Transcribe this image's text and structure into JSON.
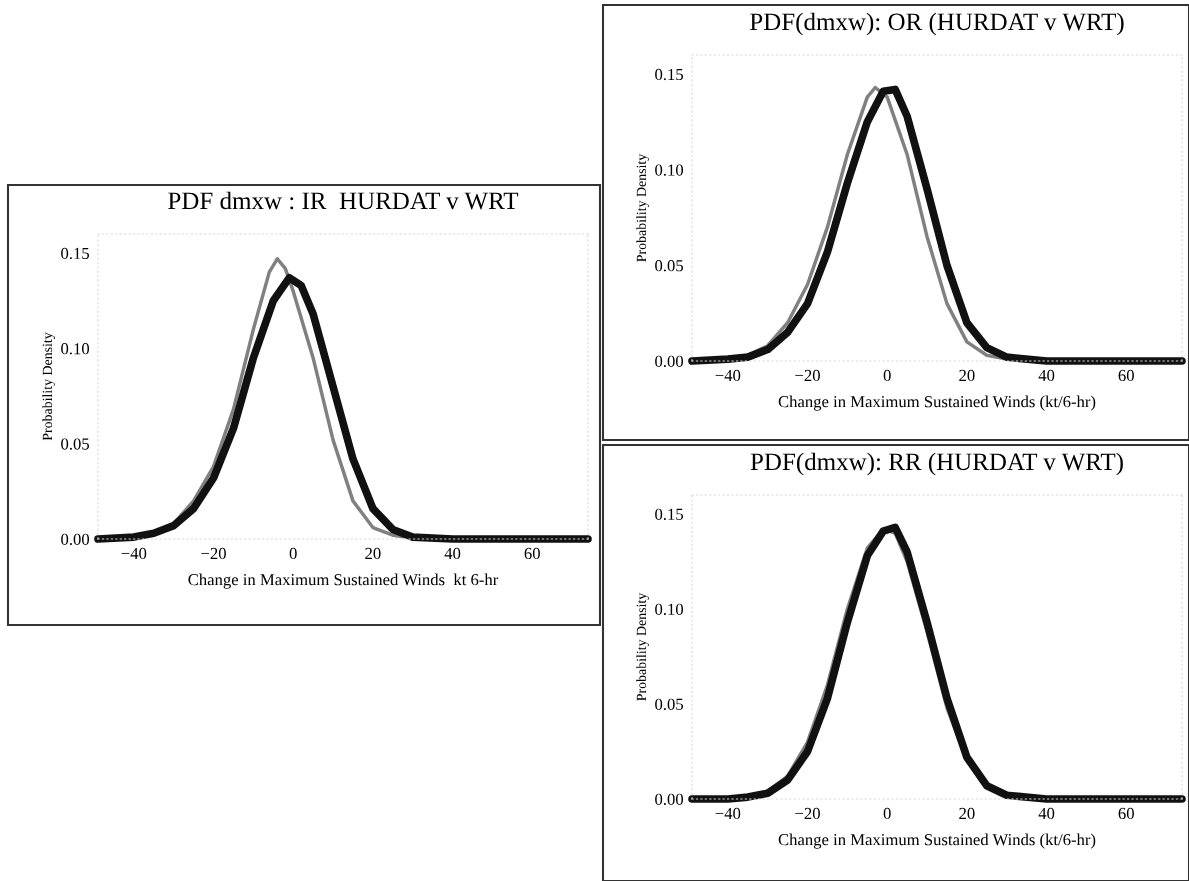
{
  "chart_data": [
    {
      "type": "line",
      "title": "PDF dmxw : IR  HURDAT v WRT",
      "xlabel": "Change in Maximum Sustained Winds  kt 6-hr",
      "ylabel": "Probability Density",
      "xlim": [
        -49,
        74
      ],
      "ylim": [
        0,
        0.16
      ],
      "xticks": [
        -40,
        -20,
        0,
        20,
        40,
        60
      ],
      "yticks": [
        {
          "value": 0,
          "label": "0.00"
        },
        {
          "value": 0.05,
          "label": "0.05"
        },
        {
          "value": 0.1,
          "label": "0.10"
        },
        {
          "value": 0.15,
          "label": "0.15"
        }
      ],
      "grid": false,
      "legend": false,
      "series": [
        {
          "color": "#808080",
          "x": [
            -49,
            -40,
            -35,
            -30,
            -25,
            -20,
            -15,
            -10,
            -6,
            -4,
            -2,
            0,
            5,
            10,
            15,
            20,
            25,
            30,
            40,
            74
          ],
          "values": [
            0,
            0.001,
            0.003,
            0.008,
            0.02,
            0.038,
            0.068,
            0.11,
            0.14,
            0.147,
            0.142,
            0.13,
            0.095,
            0.052,
            0.02,
            0.006,
            0.002,
            0.0005,
            0,
            0
          ]
        },
        {
          "color": "#111111",
          "x": [
            -49,
            -40,
            -35,
            -30,
            -25,
            -20,
            -15,
            -10,
            -5,
            -1,
            2,
            5,
            10,
            15,
            20,
            25,
            30,
            40,
            74
          ],
          "values": [
            0,
            0.001,
            0.003,
            0.007,
            0.016,
            0.032,
            0.058,
            0.095,
            0.125,
            0.137,
            0.133,
            0.118,
            0.08,
            0.042,
            0.016,
            0.005,
            0.001,
            0,
            0
          ]
        }
      ]
    },
    {
      "type": "line",
      "title": "PDF(dmxw): OR (HURDAT v WRT)",
      "xlabel": "Change in Maximum Sustained Winds (kt/6-hr)",
      "ylabel": "Probability Density",
      "xlim": [
        -49,
        74
      ],
      "ylim": [
        0,
        0.16
      ],
      "xticks": [
        -40,
        -20,
        0,
        20,
        40,
        60
      ],
      "yticks": [
        {
          "value": 0,
          "label": "0.00"
        },
        {
          "value": 0.05,
          "label": "0.05"
        },
        {
          "value": 0.1,
          "label": "0.10"
        },
        {
          "value": 0.15,
          "label": "0.15"
        }
      ],
      "grid": false,
      "legend": false,
      "series": [
        {
          "color": "#808080",
          "x": [
            -49,
            -40,
            -35,
            -30,
            -25,
            -20,
            -15,
            -10,
            -5,
            -3,
            0,
            5,
            10,
            15,
            20,
            25,
            30,
            40,
            74
          ],
          "values": [
            0,
            0.001,
            0.003,
            0.008,
            0.02,
            0.04,
            0.07,
            0.108,
            0.138,
            0.143,
            0.138,
            0.108,
            0.065,
            0.03,
            0.01,
            0.003,
            0.001,
            0,
            0
          ]
        },
        {
          "color": "#111111",
          "x": [
            -49,
            -40,
            -35,
            -30,
            -25,
            -20,
            -15,
            -10,
            -5,
            -1,
            2,
            5,
            10,
            15,
            20,
            25,
            30,
            40,
            74
          ],
          "values": [
            0,
            0.001,
            0.002,
            0.006,
            0.015,
            0.03,
            0.057,
            0.093,
            0.125,
            0.141,
            0.142,
            0.128,
            0.09,
            0.05,
            0.02,
            0.007,
            0.002,
            0,
            0
          ]
        }
      ]
    },
    {
      "type": "line",
      "title": "PDF(dmxw): RR (HURDAT v WRT)",
      "xlabel": "Change in Maximum Sustained Winds (kt/6-hr)",
      "ylabel": "Probability Density",
      "xlim": [
        -49,
        74
      ],
      "ylim": [
        0,
        0.16
      ],
      "xticks": [
        -40,
        -20,
        0,
        20,
        40,
        60
      ],
      "yticks": [
        {
          "value": 0,
          "label": "0.00"
        },
        {
          "value": 0.05,
          "label": "0.05"
        },
        {
          "value": 0.1,
          "label": "0.10"
        },
        {
          "value": 0.15,
          "label": "0.15"
        }
      ],
      "grid": false,
      "legend": false,
      "series": [
        {
          "color": "#808080",
          "x": [
            -49,
            -40,
            -35,
            -30,
            -25,
            -20,
            -15,
            -10,
            -5,
            -1,
            2,
            5,
            10,
            15,
            20,
            25,
            30,
            40,
            74
          ],
          "values": [
            0,
            0,
            0.001,
            0.004,
            0.012,
            0.03,
            0.06,
            0.1,
            0.132,
            0.142,
            0.14,
            0.125,
            0.088,
            0.048,
            0.02,
            0.006,
            0.002,
            0,
            0
          ]
        },
        {
          "color": "#111111",
          "x": [
            -49,
            -40,
            -35,
            -30,
            -25,
            -20,
            -15,
            -10,
            -5,
            -1,
            2,
            5,
            10,
            15,
            20,
            25,
            30,
            40,
            74
          ],
          "values": [
            0,
            0,
            0.001,
            0.003,
            0.01,
            0.025,
            0.053,
            0.093,
            0.128,
            0.141,
            0.143,
            0.13,
            0.093,
            0.053,
            0.022,
            0.007,
            0.002,
            0,
            0
          ]
        }
      ]
    }
  ]
}
